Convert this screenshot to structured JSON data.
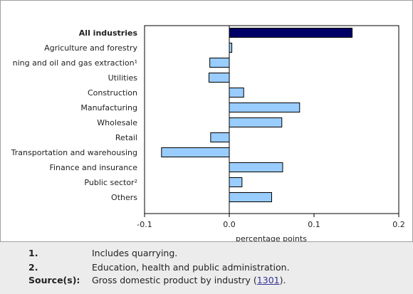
{
  "chart_data": {
    "type": "bar",
    "orientation": "horizontal",
    "categories": [
      "All industries",
      "Agriculture and forestry",
      "ning and oil and gas extraction¹",
      "Utilities",
      "Construction",
      "Manufacturing",
      "Wholesale",
      "Retail",
      "Transportation and warehousing",
      "Finance and insurance",
      "Public sector²",
      "Others"
    ],
    "values": [
      0.145,
      0.003,
      -0.023,
      -0.024,
      0.017,
      0.083,
      0.062,
      -0.022,
      -0.08,
      0.063,
      0.015,
      0.05
    ],
    "highlight_category": "All industries",
    "xlabel": "percentage points",
    "xlim": [
      -0.1,
      0.2
    ],
    "xticks": [
      "-0.1",
      "0.0",
      "0.1",
      "0.2"
    ],
    "xtick_values": [
      -0.1,
      0.0,
      0.1,
      0.2
    ],
    "grid": false,
    "colors": {
      "bar": "#99ccff",
      "highlight": "#000066",
      "outline": "#000000"
    }
  },
  "notes": [
    {
      "key": "1.",
      "text": "Includes quarrying."
    },
    {
      "key": "2.",
      "text": "Education, health and public administration."
    }
  ],
  "source": {
    "key": "Source(s):",
    "text_before": "Gross domestic product by industry (",
    "link": "1301",
    "text_after": ")."
  }
}
